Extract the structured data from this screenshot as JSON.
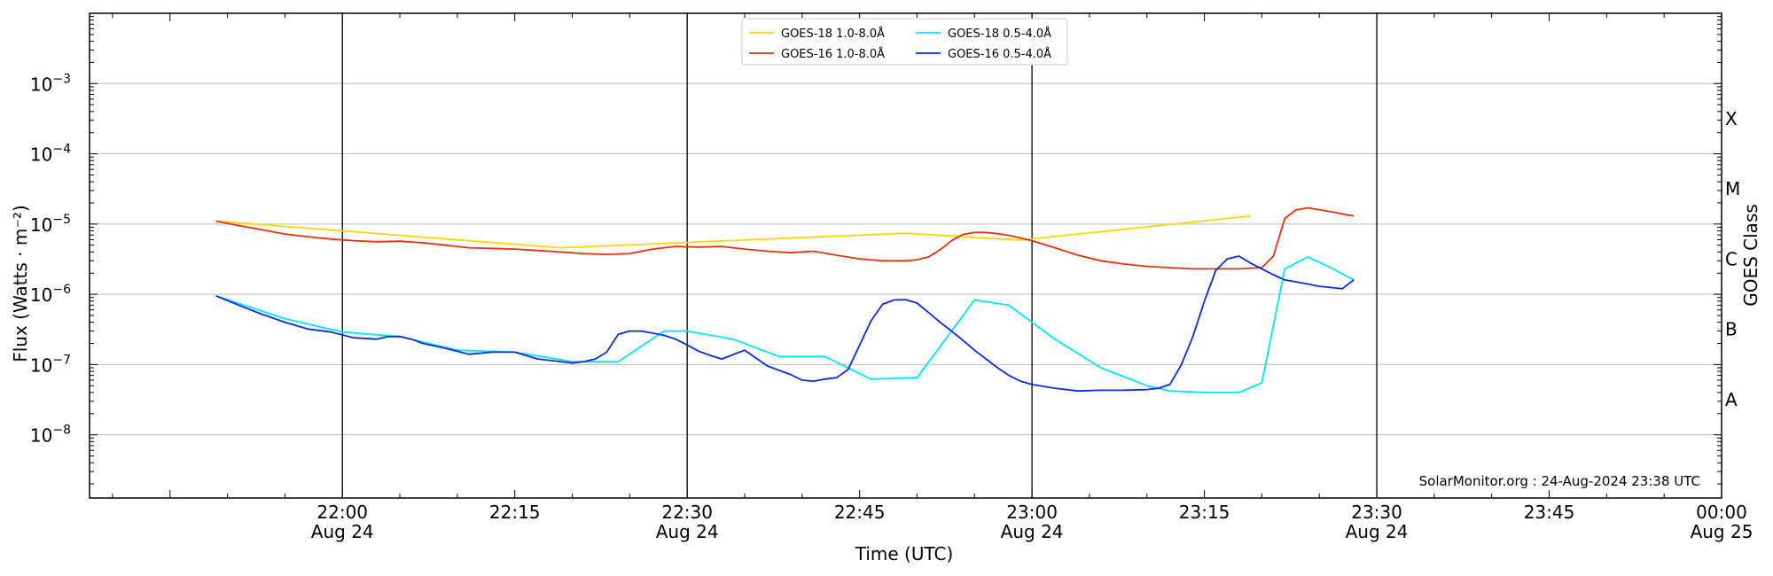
{
  "chart_data": {
    "type": "line",
    "xlabel": "Time (UTC)",
    "ylabel": "Flux (Watts · m⁻²)",
    "right_ylabel": "GOES Class",
    "credit": "SolarMonitor.org : 24-Aug-2024 23:38 UTC",
    "xlim_minutes_from_2200": [
      -22,
      60
    ],
    "ylim_log10": [
      -8.9,
      -2.0
    ],
    "yscale": "log",
    "grid": "horizontal",
    "legend_position": "top-center",
    "vertical_markers_minutes": [
      0,
      30,
      60,
      90
    ],
    "x_ticks": [
      {
        "t": 0,
        "time": "22:00",
        "date": "Aug 24"
      },
      {
        "t": 15,
        "time": "22:15",
        "date": ""
      },
      {
        "t": 30,
        "time": "22:30",
        "date": "Aug 24"
      },
      {
        "t": 45,
        "time": "22:45",
        "date": ""
      },
      {
        "t": 60,
        "time": "23:00",
        "date": "Aug 24"
      },
      {
        "t": 75,
        "time": "23:15",
        "date": ""
      },
      {
        "t": 90,
        "time": "23:30",
        "date": "Aug 24"
      },
      {
        "t": 105,
        "time": "23:45",
        "date": ""
      },
      {
        "t": 120,
        "time": "00:00",
        "date": "Aug 25"
      }
    ],
    "y_ticks": [
      {
        "exp": -8,
        "label": "10",
        "sup": "−8"
      },
      {
        "exp": -7,
        "label": "10",
        "sup": "−7"
      },
      {
        "exp": -6,
        "label": "10",
        "sup": "−6"
      },
      {
        "exp": -5,
        "label": "10",
        "sup": "−5"
      },
      {
        "exp": -4,
        "label": "10",
        "sup": "−4"
      },
      {
        "exp": -3,
        "label": "10",
        "sup": "−3"
      }
    ],
    "goes_classes": [
      {
        "label": "A",
        "exp": -7.5
      },
      {
        "label": "B",
        "exp": -6.5
      },
      {
        "label": "C",
        "exp": -5.5
      },
      {
        "label": "M",
        "exp": -4.5
      },
      {
        "label": "X",
        "exp": -3.5
      }
    ],
    "series": [
      {
        "name": "GOES-18 1.0-8.0Å",
        "color": "#ffd700",
        "x": [
          -11,
          19,
          49,
          59,
          79
        ],
        "y": [
          1.1e-05,
          4.6e-06,
          7.4e-06,
          5.9e-06,
          1.3e-05
        ]
      },
      {
        "name": "GOES-18 0.5-4.0Å",
        "color": "#00e5ff",
        "x": [
          -11,
          -5,
          0,
          5,
          10,
          15,
          20,
          24,
          28,
          30,
          34,
          38,
          42,
          46,
          50,
          53,
          55,
          58,
          62,
          66,
          70,
          72,
          75,
          78,
          80,
          82,
          84,
          86,
          88
        ],
        "y": [
          9.5e-07,
          4.5e-07,
          2.9e-07,
          2.5e-07,
          1.6e-07,
          1.5e-07,
          1.1e-07,
          1.1e-07,
          3e-07,
          3e-07,
          2.3e-07,
          1.3e-07,
          1.3e-07,
          6.2e-08,
          6.5e-08,
          3e-07,
          8.3e-07,
          7e-07,
          2.3e-07,
          9e-08,
          5e-08,
          4.2e-08,
          4e-08,
          4e-08,
          5.5e-08,
          2.3e-06,
          3.4e-06,
          2.4e-06,
          1.6e-06
        ]
      },
      {
        "name": "GOES-16 1.0-8.0Å",
        "color": "#e8300a",
        "x": [
          -11,
          -9,
          -7,
          -5,
          -3,
          -1,
          1,
          3,
          5,
          7,
          9,
          11,
          13,
          15,
          17,
          19,
          21,
          23,
          25,
          27,
          29,
          31,
          33,
          35,
          37,
          39,
          41,
          43,
          45,
          47,
          49,
          50,
          51,
          52,
          53,
          54,
          55,
          56,
          57,
          58,
          60,
          62,
          64,
          66,
          68,
          70,
          72,
          74,
          76,
          78,
          80,
          81,
          82,
          83,
          84,
          85,
          86,
          88
        ],
        "y": [
          1.1e-05,
          9.5e-06,
          8.3e-06,
          7.2e-06,
          6.6e-06,
          6.1e-06,
          5.8e-06,
          5.6e-06,
          5.7e-06,
          5.4e-06,
          5e-06,
          4.6e-06,
          4.5e-06,
          4.4e-06,
          4.2e-06,
          4e-06,
          3.8e-06,
          3.7e-06,
          3.8e-06,
          4.4e-06,
          4.8e-06,
          4.7e-06,
          4.8e-06,
          4.4e-06,
          4.1e-06,
          3.9e-06,
          4.1e-06,
          3.6e-06,
          3.2e-06,
          3e-06,
          3e-06,
          3.1e-06,
          3.4e-06,
          4.3e-06,
          5.8e-06,
          7.1e-06,
          7.6e-06,
          7.6e-06,
          7.3e-06,
          6.9e-06,
          5.8e-06,
          4.6e-06,
          3.6e-06,
          3e-06,
          2.7e-06,
          2.5e-06,
          2.4e-06,
          2.3e-06,
          2.3e-06,
          2.3e-06,
          2.4e-06,
          3.5e-06,
          1.2e-05,
          1.6e-05,
          1.7e-05,
          1.6e-05,
          1.5e-05,
          1.3e-05
        ]
      },
      {
        "name": "GOES-16 0.5-4.0Å",
        "color": "#0a2cdc",
        "x": [
          -11,
          -9,
          -7,
          -5,
          -3,
          -1,
          1,
          3,
          4,
          5,
          6,
          7,
          9,
          11,
          13,
          15,
          17,
          19,
          20,
          21,
          22,
          23,
          24,
          25,
          26,
          27,
          28,
          29,
          30,
          31,
          32,
          33,
          35,
          37,
          39,
          40,
          41,
          42,
          43,
          44,
          46,
          47,
          48,
          49,
          50,
          51,
          52,
          53,
          54,
          55,
          56,
          57,
          58,
          59,
          60,
          62,
          64,
          66,
          68,
          70,
          71,
          72,
          73,
          74,
          75,
          76,
          77,
          78,
          79,
          80,
          81,
          82,
          83,
          84,
          85,
          86,
          87,
          88
        ],
        "y": [
          9.5e-07,
          7e-07,
          5.2e-07,
          4e-07,
          3.2e-07,
          2.9e-07,
          2.4e-07,
          2.3e-07,
          2.5e-07,
          2.5e-07,
          2.3e-07,
          2e-07,
          1.7e-07,
          1.4e-07,
          1.5e-07,
          1.5e-07,
          1.2e-07,
          1.1e-07,
          1.05e-07,
          1.1e-07,
          1.2e-07,
          1.5e-07,
          2.7e-07,
          3e-07,
          3e-07,
          2.8e-07,
          2.6e-07,
          2.3e-07,
          1.9e-07,
          1.55e-07,
          1.35e-07,
          1.2e-07,
          1.6e-07,
          9.5e-08,
          7.2e-08,
          6e-08,
          5.8e-08,
          6.2e-08,
          6.5e-08,
          8.5e-08,
          4.2e-07,
          7.2e-07,
          8.3e-07,
          8.4e-07,
          7.5e-07,
          5.5e-07,
          4e-07,
          3e-07,
          2.2e-07,
          1.6e-07,
          1.2e-07,
          9e-08,
          7e-08,
          5.8e-08,
          5.2e-08,
          4.6e-08,
          4.2e-08,
          4.3e-08,
          4.3e-08,
          4.4e-08,
          4.6e-08,
          5.2e-08,
          1e-07,
          2.5e-07,
          8e-07,
          2.2e-06,
          3.2e-06,
          3.5e-06,
          2.8e-06,
          2.3e-06,
          1.9e-06,
          1.6e-06,
          1.5e-06,
          1.4e-06,
          1.3e-06,
          1.25e-06,
          1.2e-06,
          1.6e-06
        ]
      }
    ]
  }
}
